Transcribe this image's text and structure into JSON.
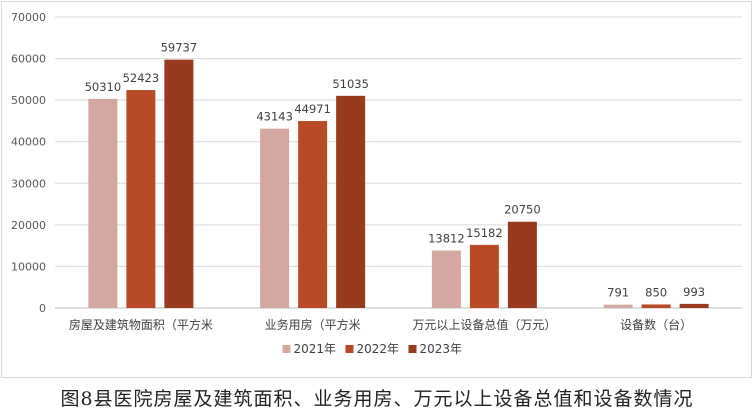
{
  "caption": "图8县医院房屋及建筑面积、业务用房、万元以上设备总值和设备数情况",
  "chart_data": {
    "type": "bar",
    "categories": [
      "房屋及建筑物面积（平方米",
      "业务用房（平方米",
      "万元以上设备总值（万元）",
      "设备数（台）"
    ],
    "series": [
      {
        "name": "2021年",
        "color": "#d4a7a0",
        "values": [
          50310,
          43143,
          13812,
          791
        ]
      },
      {
        "name": "2022年",
        "color": "#b84a25",
        "values": [
          52423,
          44971,
          15182,
          850
        ]
      },
      {
        "name": "2023年",
        "color": "#973a1d",
        "values": [
          59737,
          51035,
          20750,
          993
        ]
      }
    ],
    "ylim": [
      0,
      70000
    ],
    "yticks": [
      "0",
      "10000",
      "20000",
      "30000",
      "40000",
      "50000",
      "60000",
      "70000"
    ],
    "grid": true,
    "legend": "bottom"
  }
}
